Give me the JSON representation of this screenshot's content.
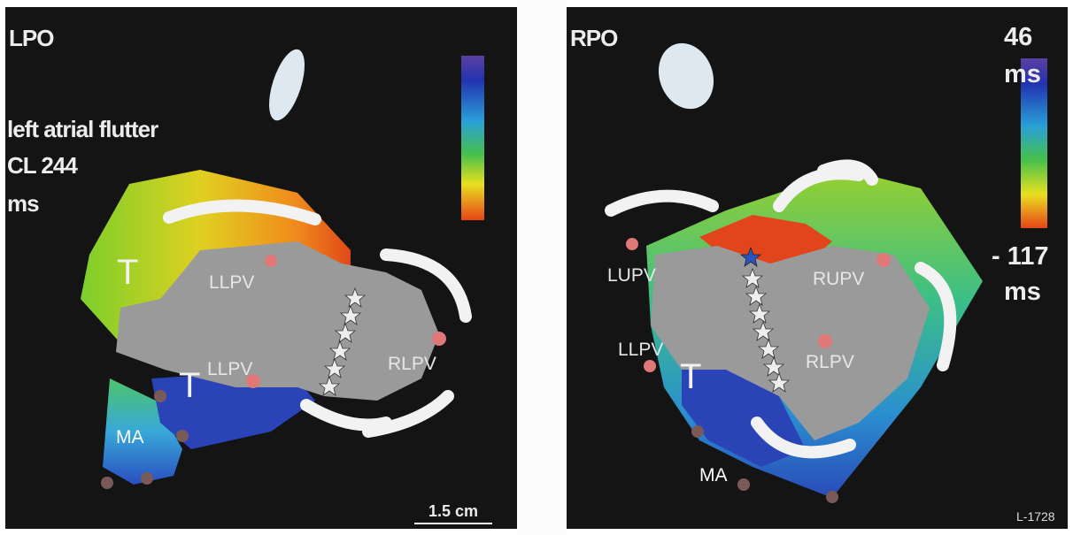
{
  "left_panel": {
    "view": "LPO",
    "arrhythmia": "left atrial flutter",
    "cycle_length_line1": "CL 244",
    "cycle_length_line2": "ms",
    "veins": {
      "upper": "LLPV",
      "lower": "LLPV",
      "right": "RLPV"
    },
    "regions": {
      "t_upper": "T",
      "t_lower": "T",
      "ma": "MA"
    },
    "scale_bar": "1.5 cm"
  },
  "right_panel": {
    "view": "RPO",
    "color_scale": {
      "max": "46",
      "max_unit": "ms",
      "min": "- 117",
      "min_unit": "ms"
    },
    "veins": {
      "lupv": "LUPV",
      "rupv": "RUPV",
      "llpv": "LLPV",
      "rlpv": "RLPV"
    },
    "regions": {
      "t": "T",
      "ma": "MA"
    }
  },
  "figure_id": "L-1728",
  "colors": {
    "background": "#141414",
    "tissue_gray": "#9a9a9a",
    "activation_late": "#2b3fb0",
    "activation_early": "#e2451c",
    "ablation_marker": "#e07878"
  }
}
